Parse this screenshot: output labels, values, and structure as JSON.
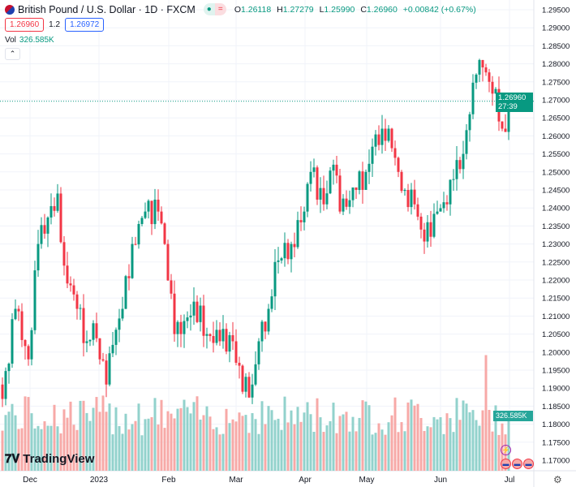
{
  "header": {
    "symbol_title": "British Pound / U.S. Dollar · 1D · FXCM",
    "ohlc": [
      {
        "label": "O",
        "value": "1.26118"
      },
      {
        "label": "H",
        "value": "1.27279"
      },
      {
        "label": "L",
        "value": "1.25990"
      },
      {
        "label": "C",
        "value": "1.26960"
      },
      {
        "label": "",
        "value": "+0.00842 (+0.67%)"
      }
    ],
    "sell_price": "1.26960",
    "spread": "1.2",
    "buy_price": "1.26972",
    "volume_label": "Vol",
    "volume_value": "326.585K"
  },
  "price_axis": {
    "ticks": [
      "1.29500",
      "1.29000",
      "1.28500",
      "1.28000",
      "1.27500",
      "1.27000",
      "1.26500",
      "1.26000",
      "1.25500",
      "1.25000",
      "1.24500",
      "1.24000",
      "1.23500",
      "1.23000",
      "1.22500",
      "1.22000",
      "1.21500",
      "1.21000",
      "1.20500",
      "1.20000",
      "1.19500",
      "1.19000",
      "1.18500",
      "1.18000",
      "1.17500",
      "1.17000"
    ],
    "last_price": "1.26960",
    "countdown": "27:39",
    "volume_tag": "326.585K"
  },
  "time_axis": {
    "labels": [
      "Dec",
      "2023",
      "Feb",
      "Mar",
      "Apr",
      "May",
      "Jun",
      "Jul"
    ]
  },
  "colors": {
    "up": "#089981",
    "down": "#f23645",
    "vol_up": "#92d2cc",
    "vol_down": "#f7a9a7"
  },
  "chart_data": {
    "type": "candlestick",
    "close_anchors": [
      [
        0,
        1.187
      ],
      [
        4,
        1.212
      ],
      [
        8,
        1.198
      ],
      [
        11,
        1.23
      ],
      [
        17,
        1.244
      ],
      [
        19,
        1.224
      ],
      [
        23,
        1.212
      ],
      [
        26,
        1.203
      ],
      [
        28,
        1.208
      ],
      [
        30,
        1.198
      ],
      [
        32,
        1.191
      ],
      [
        34,
        1.202
      ],
      [
        37,
        1.212
      ],
      [
        40,
        1.23
      ],
      [
        44,
        1.239
      ],
      [
        48,
        1.239
      ],
      [
        50,
        1.23
      ],
      [
        53,
        1.205
      ],
      [
        55,
        1.205
      ],
      [
        59,
        1.214
      ],
      [
        63,
        1.205
      ],
      [
        67,
        1.203
      ],
      [
        71,
        1.203
      ],
      [
        74,
        1.189
      ],
      [
        77,
        1.191
      ],
      [
        79,
        1.203
      ],
      [
        82,
        1.212
      ],
      [
        84,
        1.225
      ],
      [
        89,
        1.23
      ],
      [
        93,
        1.239
      ],
      [
        95,
        1.25
      ],
      [
        99,
        1.241
      ],
      [
        102,
        1.252
      ],
      [
        104,
        1.239
      ],
      [
        109,
        1.245
      ],
      [
        112,
        1.25
      ],
      [
        114,
        1.257
      ],
      [
        117,
        1.262
      ],
      [
        119,
        1.262
      ],
      [
        122,
        1.25
      ],
      [
        124,
        1.245
      ],
      [
        127,
        1.241
      ],
      [
        129,
        1.234
      ],
      [
        132,
        1.232
      ],
      [
        134,
        1.239
      ],
      [
        137,
        1.241
      ],
      [
        139,
        1.248
      ],
      [
        142,
        1.255
      ],
      [
        144,
        1.266
      ],
      [
        146,
        1.277
      ],
      [
        148,
        1.279
      ],
      [
        150,
        1.275
      ],
      [
        152,
        1.273
      ],
      [
        154,
        1.262
      ],
      [
        155,
        1.2611
      ],
      [
        156,
        1.2696
      ]
    ],
    "last_volume": "326.585K",
    "ylim": [
      1.1675,
      1.2975
    ]
  }
}
